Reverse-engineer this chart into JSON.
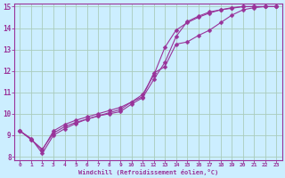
{
  "xlabel": "Windchill (Refroidissement éolien,°C)",
  "bg_color": "#cceeff",
  "grid_color": "#aaccbb",
  "line_color": "#993399",
  "xlim": [
    -0.5,
    23.5
  ],
  "ylim": [
    7.85,
    15.15
  ],
  "xticks": [
    0,
    1,
    2,
    3,
    4,
    5,
    6,
    7,
    8,
    9,
    10,
    11,
    12,
    13,
    14,
    15,
    16,
    17,
    18,
    19,
    20,
    21,
    22,
    23
  ],
  "yticks": [
    8,
    9,
    10,
    11,
    12,
    13,
    14,
    15
  ],
  "line1_x": [
    0,
    1,
    2,
    3,
    4,
    5,
    6,
    7,
    8,
    9,
    10,
    11,
    12,
    13,
    14,
    15,
    16,
    17,
    18,
    19,
    20,
    21,
    22,
    23
  ],
  "line1_y": [
    9.2,
    8.8,
    8.35,
    9.1,
    9.4,
    9.6,
    9.75,
    9.9,
    10.05,
    10.2,
    10.55,
    10.9,
    11.8,
    13.1,
    13.9,
    14.25,
    14.5,
    14.7,
    14.85,
    14.95,
    15.0,
    15.0,
    15.0,
    15.0
  ],
  "line2_x": [
    0,
    1,
    2,
    3,
    4,
    5,
    6,
    7,
    8,
    9,
    10,
    11,
    12,
    13,
    14,
    15,
    16,
    17,
    18,
    19,
    20,
    21,
    22,
    23
  ],
  "line2_y": [
    9.2,
    8.8,
    8.3,
    9.2,
    9.5,
    9.7,
    9.85,
    10.0,
    10.15,
    10.3,
    10.55,
    10.8,
    11.9,
    12.2,
    13.25,
    13.35,
    13.65,
    13.9,
    14.25,
    14.6,
    14.85,
    14.95,
    15.0,
    15.0
  ],
  "line3_x": [
    0,
    1,
    2,
    3,
    4,
    5,
    6,
    7,
    8,
    9,
    10,
    11,
    12,
    13,
    14,
    15,
    16,
    17,
    18,
    19,
    20,
    21,
    22,
    23
  ],
  "line3_y": [
    9.2,
    8.85,
    8.15,
    9.0,
    9.3,
    9.55,
    9.75,
    9.9,
    10.0,
    10.1,
    10.45,
    10.75,
    11.6,
    12.4,
    13.6,
    14.3,
    14.55,
    14.75,
    14.85,
    14.92,
    15.0,
    15.0,
    15.0,
    15.0
  ]
}
